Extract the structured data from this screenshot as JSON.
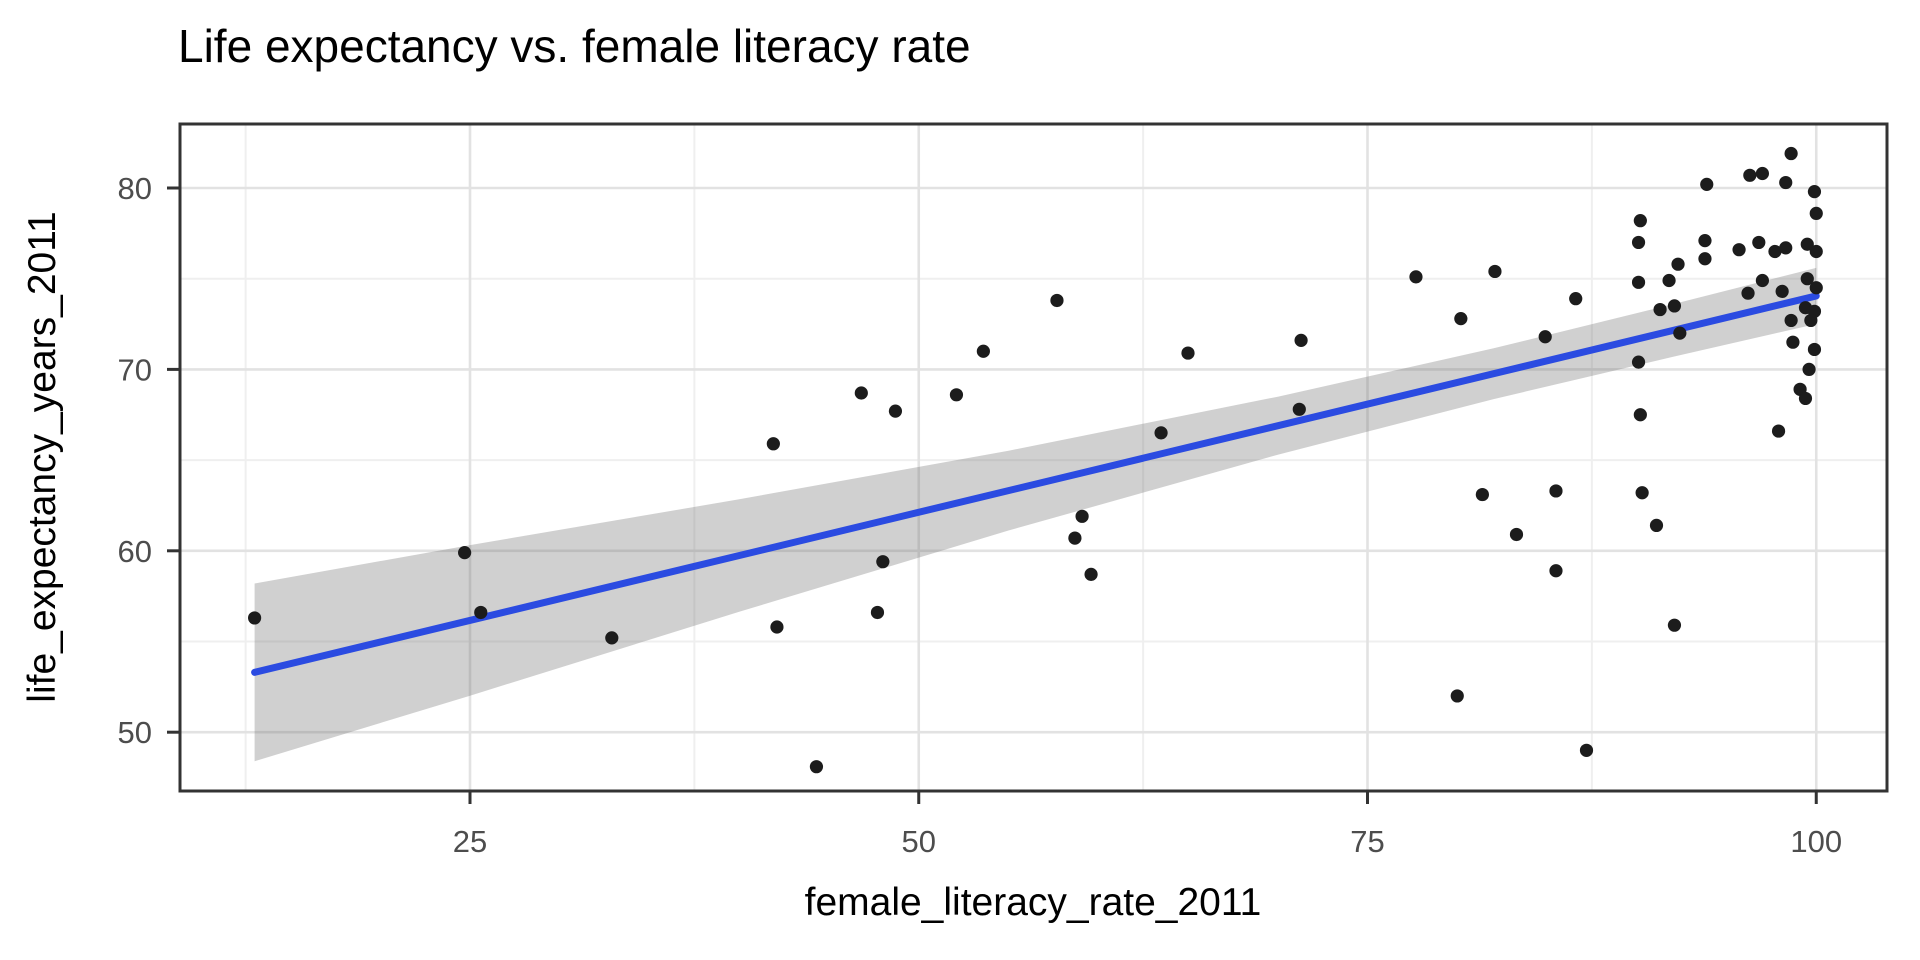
{
  "chart_data": {
    "type": "scatter",
    "title": "Life expectancy vs. female literacy rate",
    "xlabel": "female_literacy_rate_2011",
    "ylabel": "life_expectancy_years_2011",
    "x_ticks": [
      25,
      50,
      75,
      100
    ],
    "y_ticks": [
      50,
      60,
      70,
      80
    ],
    "x_minor_gridlines": [
      12.5,
      37.5,
      62.5,
      87.5
    ],
    "y_minor_gridlines": [
      55,
      65,
      75
    ],
    "xlim": [
      8.9,
      103.9
    ],
    "ylim": [
      46.7,
      83.5
    ],
    "grid": "on",
    "legend": "none",
    "points": [
      [
        13.0,
        56.3
      ],
      [
        24.7,
        59.9
      ],
      [
        25.6,
        56.6
      ],
      [
        32.9,
        55.2
      ],
      [
        41.9,
        65.9
      ],
      [
        42.1,
        55.8
      ],
      [
        44.3,
        48.1
      ],
      [
        46.8,
        68.7
      ],
      [
        47.7,
        56.6
      ],
      [
        48.0,
        59.4
      ],
      [
        48.7,
        67.7
      ],
      [
        52.1,
        68.6
      ],
      [
        53.6,
        71.0
      ],
      [
        57.7,
        73.8
      ],
      [
        58.7,
        60.7
      ],
      [
        59.1,
        61.9
      ],
      [
        59.6,
        58.7
      ],
      [
        63.5,
        66.5
      ],
      [
        65.0,
        70.9
      ],
      [
        71.3,
        71.6
      ],
      [
        71.2,
        67.8
      ],
      [
        77.7,
        75.1
      ],
      [
        80.0,
        52.0
      ],
      [
        80.2,
        72.8
      ],
      [
        81.4,
        63.1
      ],
      [
        82.1,
        75.4
      ],
      [
        83.3,
        60.9
      ],
      [
        84.9,
        71.8
      ],
      [
        85.5,
        63.3
      ],
      [
        85.5,
        58.9
      ],
      [
        86.6,
        73.9
      ],
      [
        87.2,
        49.0
      ],
      [
        90.1,
        70.4
      ],
      [
        90.2,
        67.5
      ],
      [
        90.3,
        63.2
      ],
      [
        91.1,
        61.4
      ],
      [
        92.1,
        55.9
      ],
      [
        90.2,
        78.2
      ],
      [
        90.1,
        77.0
      ],
      [
        90.1,
        74.8
      ],
      [
        91.8,
        74.9
      ],
      [
        91.3,
        73.3
      ],
      [
        92.1,
        73.5
      ],
      [
        92.4,
        72.0
      ],
      [
        92.3,
        75.8
      ],
      [
        93.8,
        77.1
      ],
      [
        93.8,
        76.1
      ],
      [
        93.9,
        80.2
      ],
      [
        95.7,
        76.6
      ],
      [
        96.3,
        80.7
      ],
      [
        97.0,
        80.8
      ],
      [
        96.8,
        77.0
      ],
      [
        97.7,
        76.5
      ],
      [
        98.3,
        76.7
      ],
      [
        99.5,
        76.9
      ],
      [
        100.0,
        76.5
      ],
      [
        96.2,
        74.2
      ],
      [
        97.0,
        74.9
      ],
      [
        98.1,
        74.3
      ],
      [
        99.5,
        75.0
      ],
      [
        100.0,
        74.5
      ],
      [
        98.3,
        80.3
      ],
      [
        99.9,
        79.8
      ],
      [
        100.0,
        78.6
      ],
      [
        98.6,
        81.9
      ],
      [
        99.4,
        73.4
      ],
      [
        99.9,
        73.2
      ],
      [
        99.7,
        72.7
      ],
      [
        98.6,
        72.7
      ],
      [
        98.7,
        71.5
      ],
      [
        99.9,
        71.1
      ],
      [
        99.6,
        70.0
      ],
      [
        99.1,
        68.9
      ],
      [
        99.4,
        68.4
      ],
      [
        97.9,
        66.6
      ]
    ],
    "trend_line": {
      "fit": "linear",
      "x_start": 13,
      "y_start": 53.3,
      "x_end": 100,
      "y_end": 74.05
    },
    "confidence_band": {
      "x": [
        13,
        25,
        40,
        55,
        70,
        82,
        92,
        100
      ],
      "half_width": [
        4.9,
        4.15,
        3.1,
        2.2,
        1.6,
        1.4,
        1.45,
        1.55
      ]
    },
    "colors": {
      "point": "#1c1c1c",
      "trend_line": "#2b4be1",
      "band_fill": "rgba(110,110,110,0.32)",
      "panel_background": "#ffffff",
      "major_gridline": "#e2e2e2",
      "minor_gridline": "#efefef",
      "panel_border": "#333333",
      "tick_mark": "#333333",
      "tick_label": "#4d4d4d",
      "axis_title": "#000000",
      "title": "#000000"
    }
  }
}
